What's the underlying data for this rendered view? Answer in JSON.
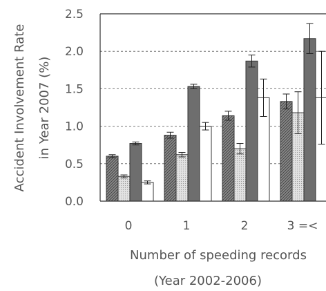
{
  "chart_data": {
    "type": "bar",
    "ylabel_line1": "Accident   Involvement Rate",
    "ylabel_line2": "in Year 2007 (%)",
    "xlabel_line1": "Number of speeding records",
    "xlabel_line2": "(Year 2002-2006)",
    "ylim": [
      0,
      2.5
    ],
    "yticks": [
      "0.0",
      "0.5",
      "1.0",
      "1.5",
      "2.0",
      "2.5"
    ],
    "ytick_values": [
      0,
      0.5,
      1.0,
      1.5,
      2.0,
      2.5
    ],
    "categories": [
      "0",
      "1",
      "2",
      "3 =<"
    ],
    "grid": "horizontal dashed",
    "series": [
      {
        "fill": "hatched",
        "values": [
          0.6,
          0.88,
          1.14,
          1.33
        ],
        "errors": [
          0.02,
          0.04,
          0.06,
          0.1
        ]
      },
      {
        "fill": "dotted",
        "values": [
          0.33,
          0.62,
          0.7,
          1.18
        ],
        "errors": [
          0.02,
          0.03,
          0.07,
          0.28
        ]
      },
      {
        "fill": "dark",
        "values": [
          0.77,
          1.53,
          1.87,
          2.17
        ],
        "errors": [
          0.02,
          0.03,
          0.08,
          0.2
        ]
      },
      {
        "fill": "white",
        "values": [
          0.25,
          1.0,
          1.38,
          1.38
        ],
        "errors": [
          0.02,
          0.05,
          0.25,
          0.62
        ]
      }
    ]
  },
  "colors": {
    "hatched": "#7a7a7a",
    "dotted": "#d6d6d6",
    "dark": "#6e6e6e",
    "white": "#ffffff",
    "axis": "#333333",
    "text": "#555555"
  }
}
